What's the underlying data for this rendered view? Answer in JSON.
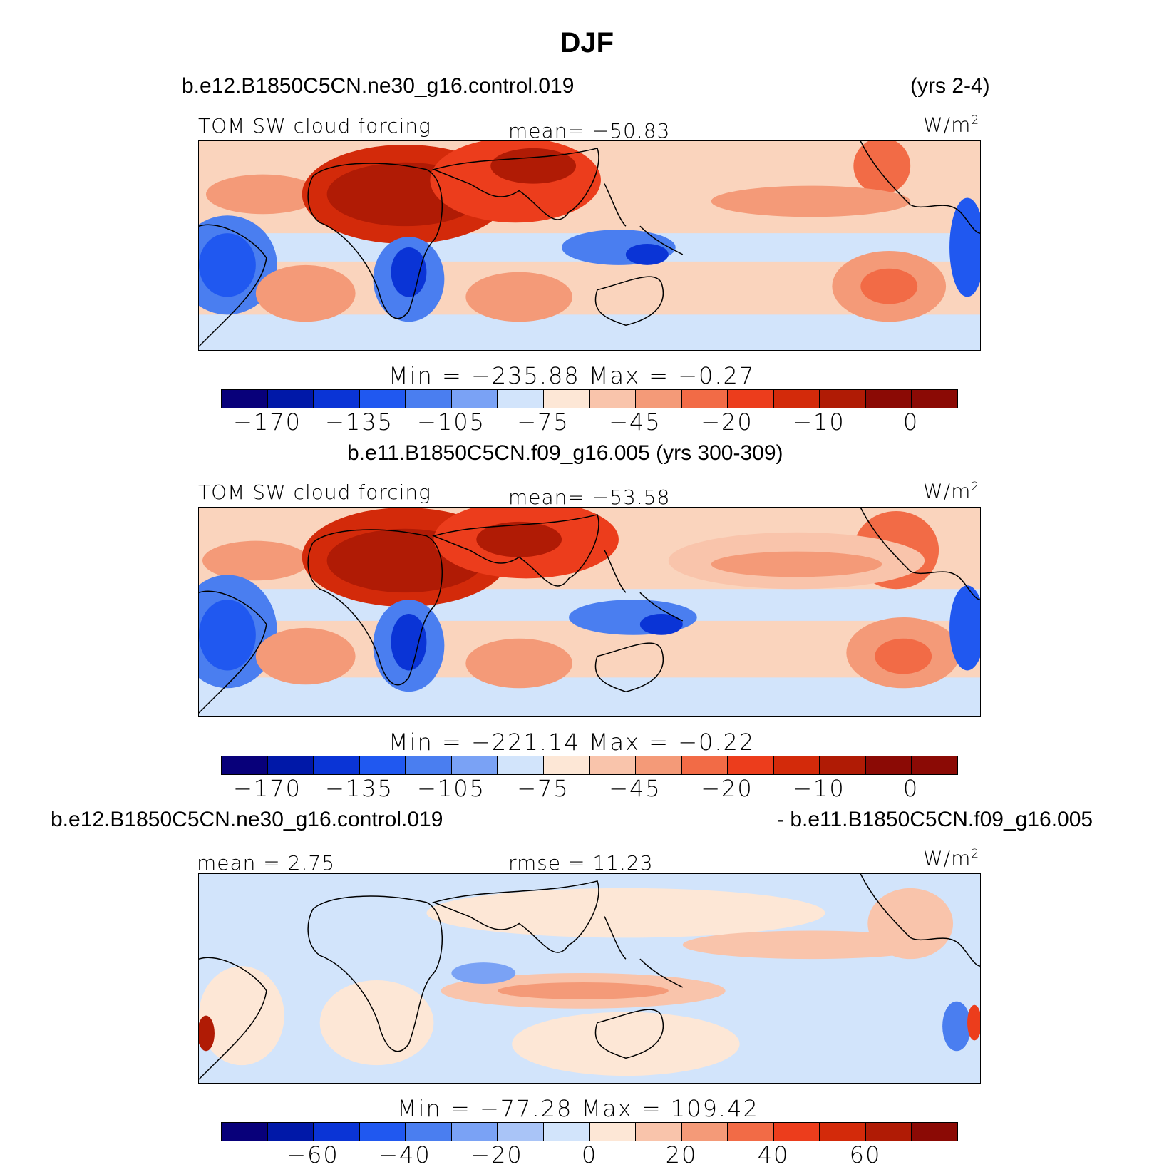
{
  "title": "DJF",
  "colors": [
    "#08007a",
    "#0018a8",
    "#0a34d6",
    "#2058f0",
    "#4a7ef0",
    "#7aa2f5",
    "#a9c4f7",
    "#d2e4fb",
    "#fde7d6",
    "#f9c4ab",
    "#f49a78",
    "#f26b46",
    "#ec3d1c",
    "#d32a0a",
    "#b01b05",
    "#8b0a05"
  ],
  "panels": [
    {
      "case_left": "b.e12.B1850C5CN.ne30_g16.control.019",
      "case_right": "(yrs 2-4)",
      "variable": "TOM SW cloud forcing",
      "stat": "mean= −50.83",
      "units": "W/m",
      "units_exp": "2",
      "minmax": "Min = −235.88 Max =  −0.27",
      "ticks": [
        "−170",
        "−135",
        "−105",
        "−75",
        "−45",
        "−20",
        "−10",
        "0"
      ]
    },
    {
      "case_left": "b.e11.B1850C5CN.f09_g16.005 (yrs 300-309)",
      "variable": "TOM SW cloud forcing",
      "stat": "mean= −53.58",
      "units": "W/m",
      "units_exp": "2",
      "minmax": "Min = −221.14 Max =  −0.22",
      "ticks": [
        "−170",
        "−135",
        "−105",
        "−75",
        "−45",
        "−20",
        "−10",
        "0"
      ]
    },
    {
      "case_left": "b.e12.B1850C5CN.ne30_g16.control.019",
      "case_right": "- b.e11.B1850C5CN.f09_g16.005",
      "mean": "mean =   2.75",
      "rmse": "rmse =  11.23",
      "units": "W/m",
      "units_exp": "2",
      "minmax": "Min = −77.28 Max = 109.42",
      "ticks": [
        "−60",
        "−40",
        "−20",
        "0",
        "20",
        "40",
        "60"
      ]
    }
  ]
}
